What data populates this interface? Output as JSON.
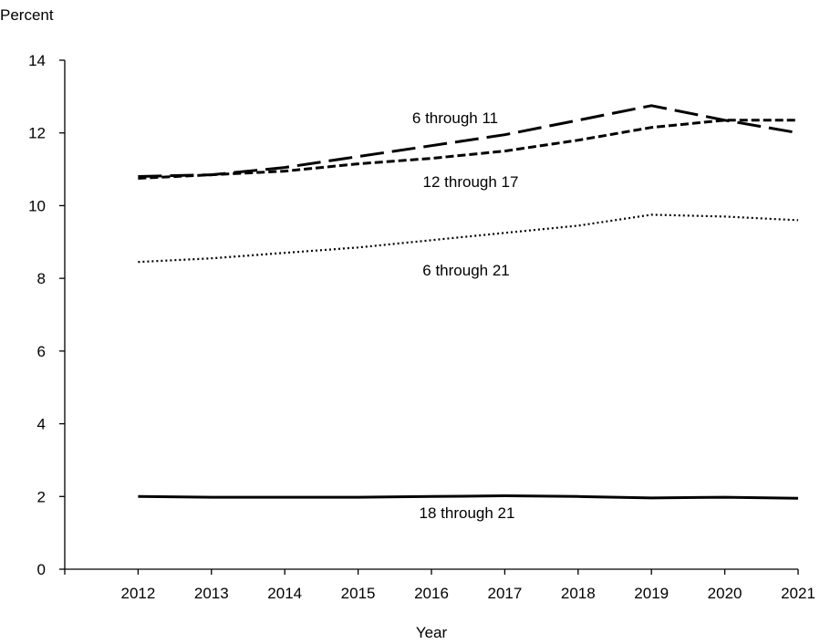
{
  "chart_data": {
    "type": "line",
    "title": "",
    "xlabel": "Year",
    "ylabel": "Percent",
    "x": [
      2012,
      2013,
      2014,
      2015,
      2016,
      2017,
      2018,
      2019,
      2020,
      2021
    ],
    "xlim": [
      2011,
      2021
    ],
    "ylim": [
      0,
      14
    ],
    "yticks": [
      0,
      2,
      4,
      6,
      8,
      10,
      12,
      14
    ],
    "grid": false,
    "legend": "none (direct labels)",
    "series": [
      {
        "name": "6 through 11",
        "line_style": "long-dash",
        "values": [
          10.8,
          10.85,
          11.05,
          11.35,
          11.65,
          11.95,
          12.35,
          12.75,
          12.35,
          12.0
        ]
      },
      {
        "name": "12 through 17",
        "line_style": "short-dash",
        "values": [
          10.75,
          10.85,
          10.95,
          11.15,
          11.3,
          11.5,
          11.8,
          12.15,
          12.35,
          12.35
        ]
      },
      {
        "name": "6 through 21",
        "line_style": "dotted",
        "values": [
          8.45,
          8.55,
          8.7,
          8.85,
          9.05,
          9.25,
          9.45,
          9.75,
          9.7,
          9.6
        ]
      },
      {
        "name": "18 through 21",
        "line_style": "solid",
        "values": [
          2.0,
          1.98,
          1.98,
          1.98,
          2.0,
          2.02,
          2.0,
          1.96,
          1.98,
          1.95
        ]
      }
    ]
  }
}
